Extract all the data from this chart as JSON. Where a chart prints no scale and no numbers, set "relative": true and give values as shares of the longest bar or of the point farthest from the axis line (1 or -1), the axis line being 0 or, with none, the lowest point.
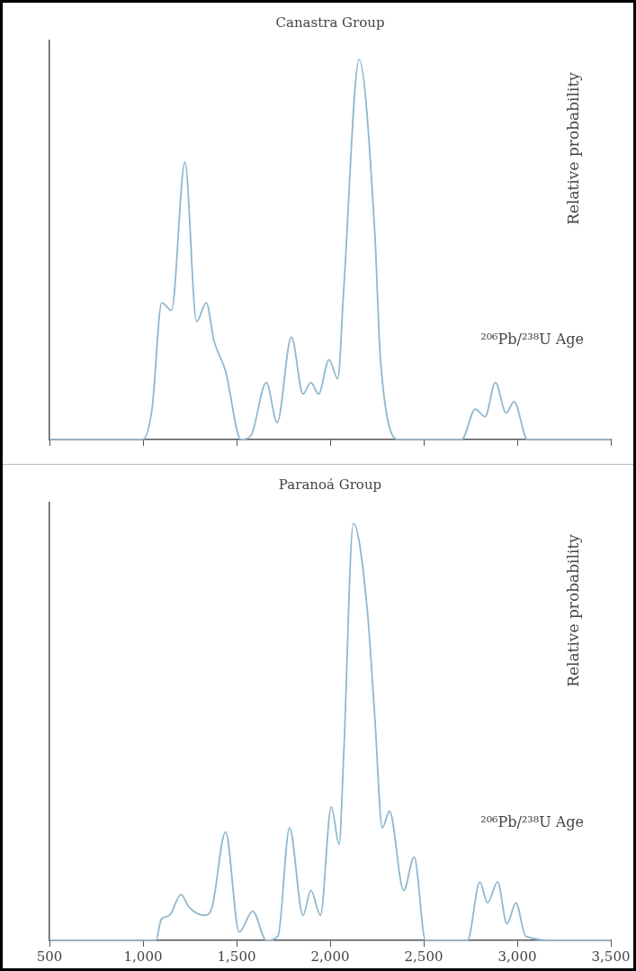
{
  "chart_data": [
    {
      "type": "line",
      "title": "Canastra Group",
      "ylabel": "Relative probability",
      "annotations": [
        "²⁰⁶Pb/²³⁸U Age"
      ],
      "relative": true,
      "tick_labels": false,
      "grid": false,
      "legend": false,
      "marker": "none",
      "line_style": "solid",
      "xlim": [
        500,
        3500
      ],
      "xticks": [
        {
          "value": 500,
          "label": null
        },
        {
          "value": 1000,
          "label": null
        },
        {
          "value": 1500,
          "label": null
        },
        {
          "value": 2000,
          "label": null
        },
        {
          "value": 2500,
          "label": null
        },
        {
          "value": 3000,
          "label": null
        },
        {
          "value": 3500,
          "label": null
        }
      ],
      "x": [
        500,
        997,
        1048,
        1100,
        1152,
        1224,
        1286,
        1338,
        1379,
        1441,
        1524,
        1576,
        1659,
        1717,
        1793,
        1855,
        1897,
        1938,
        1994,
        2041,
        2072,
        2155,
        2238,
        2269,
        2372,
        2703,
        2776,
        2828,
        2883,
        2941,
        2983,
        3055,
        3500
      ],
      "series": [
        {
          "color": "#8fb8d0",
          "values": [
            0,
            0,
            0.08,
            0.36,
            0.34,
            0.73,
            0.31,
            0.36,
            0.26,
            0.18,
            0,
            0.01,
            0.15,
            0.045,
            0.27,
            0.12,
            0.15,
            0.12,
            0.21,
            0.16,
            0.39,
            1,
            0.55,
            0.21,
            0,
            0,
            0.08,
            0.06,
            0.15,
            0.07,
            0.1,
            0,
            0
          ]
        }
      ]
    },
    {
      "type": "line",
      "title": "Paranoá Group",
      "ylabel": "Relative probability",
      "annotations": [
        "²⁰⁶Pb/²³⁸U Age"
      ],
      "relative": true,
      "tick_labels": "x",
      "grid": false,
      "legend": false,
      "marker": "none",
      "line_style": "solid",
      "xlim": [
        500,
        3500
      ],
      "xticks": [
        {
          "value": 500,
          "label": "500"
        },
        {
          "value": 1000,
          "label": "1,000"
        },
        {
          "value": 1500,
          "label": "1,500"
        },
        {
          "value": 2000,
          "label": "2,000"
        },
        {
          "value": 2500,
          "label": "2,500"
        },
        {
          "value": 3000,
          "label": "3,000"
        },
        {
          "value": 3500,
          "label": "3,500"
        }
      ],
      "x": [
        500,
        1069,
        1097,
        1141,
        1203,
        1245,
        1328,
        1369,
        1441,
        1514,
        1586,
        1659,
        1721,
        1783,
        1855,
        1897,
        1948,
        2006,
        2048,
        2072,
        2124,
        2197,
        2238,
        2279,
        2317,
        2393,
        2449,
        2510,
        2734,
        2800,
        2841,
        2895,
        2945,
        2993,
        3045,
        3210,
        3500
      ],
      "series": [
        {
          "color": "#8fb8d0",
          "values": [
            0,
            0,
            0.05,
            0.06,
            0.11,
            0.08,
            0.06,
            0.08,
            0.26,
            0.02,
            0.07,
            0,
            0.01,
            0.27,
            0.06,
            0.12,
            0.06,
            0.32,
            0.23,
            0.44,
            1,
            0.8,
            0.54,
            0.27,
            0.31,
            0.12,
            0.2,
            0,
            0,
            0.14,
            0.09,
            0.14,
            0.04,
            0.09,
            0.01,
            0,
            0
          ]
        }
      ]
    }
  ]
}
